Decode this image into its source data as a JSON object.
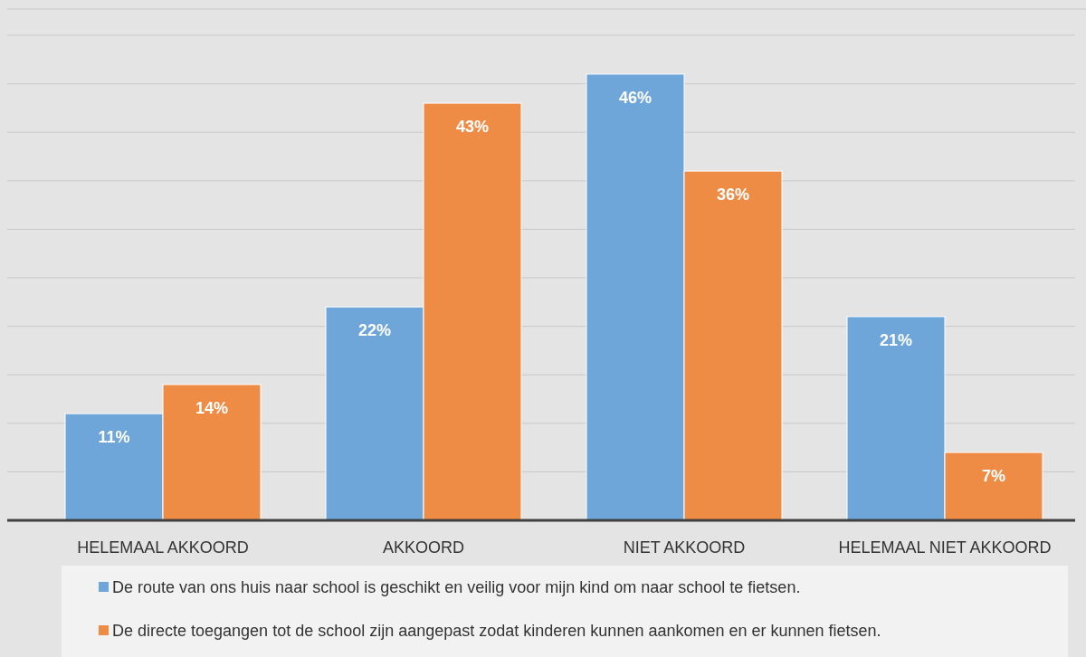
{
  "chart_data": {
    "type": "bar",
    "categories": [
      "HELEMAAL AKKOORD",
      "AKKOORD",
      "NIET AKKOORD",
      "HELEMAAL NIET AKKOORD"
    ],
    "series": [
      {
        "name": "De route van ons huis naar school is geschikt en veilig voor mijn kind om naar school te fietsen.",
        "color": "#6fa6da",
        "values": [
          11,
          22,
          46,
          21
        ],
        "value_labels": [
          "11%",
          "22%",
          "46%",
          "21%"
        ]
      },
      {
        "name": "De directe toegangen tot de school zijn aangepast zodat kinderen kunnen aankomen en er kunnen fietsen.",
        "color": "#ee8c46",
        "values": [
          14,
          43,
          36,
          7
        ],
        "value_labels": [
          "14%",
          "43%",
          "36%",
          "7%"
        ]
      }
    ],
    "ylim": [
      0,
      50
    ],
    "yticks": [
      {
        "value": 0,
        "label": null
      },
      {
        "value": 5,
        "label": null
      },
      {
        "value": 10,
        "label": null
      },
      {
        "value": 15,
        "label": null
      },
      {
        "value": 20,
        "label": null
      },
      {
        "value": 25,
        "label": null
      },
      {
        "value": 30,
        "label": null
      },
      {
        "value": 35,
        "label": null
      },
      {
        "value": 40,
        "label": null
      },
      {
        "value": 45,
        "label": null
      },
      {
        "value": 50,
        "label": null
      }
    ],
    "grid": "y",
    "legend": "bottom",
    "tick_labels": "x"
  }
}
